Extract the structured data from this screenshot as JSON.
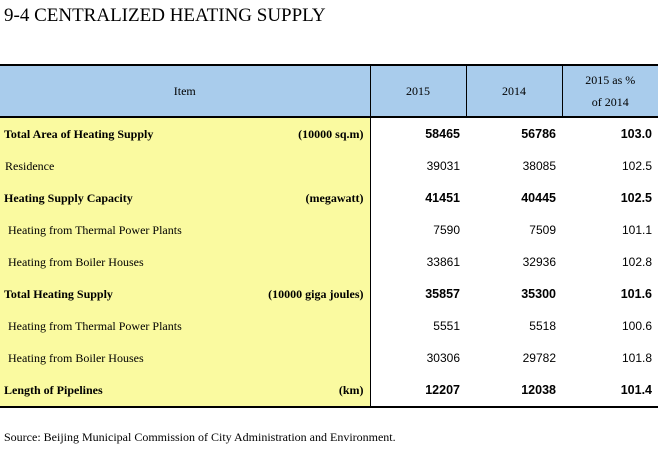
{
  "title": "9-4  CENTRALIZED HEATING SUPPLY",
  "header": {
    "item": "Item",
    "y2015": "2015",
    "y2014": "2014",
    "pct_line1": "2015 as %",
    "pct_line2": "of 2014"
  },
  "rows": [
    {
      "label": "Total Area of Heating Supply",
      "unit": "(10000 sq.m)",
      "v2015": "58465",
      "v2014": "56786",
      "pct": "103.0"
    },
    {
      "label": "Residence",
      "unit": "",
      "v2015": "39031",
      "v2014": "38085",
      "pct": "102.5"
    },
    {
      "label": "Heating Supply Capacity",
      "unit": "(megawatt)",
      "v2015": "41451",
      "v2014": "40445",
      "pct": "102.5"
    },
    {
      "label": "Heating from Thermal Power Plants",
      "unit": "",
      "v2015": "7590",
      "v2014": "7509",
      "pct": "101.1"
    },
    {
      "label": "Heating from Boiler Houses",
      "unit": "",
      "v2015": "33861",
      "v2014": "32936",
      "pct": "102.8"
    },
    {
      "label": "Total Heating Supply",
      "unit": "(10000 giga joules)",
      "v2015": "35857",
      "v2014": "35300",
      "pct": "101.6"
    },
    {
      "label": "Heating from Thermal Power Plants",
      "unit": "",
      "v2015": "5551",
      "v2014": "5518",
      "pct": "100.6"
    },
    {
      "label": "Heating from Boiler Houses",
      "unit": "",
      "v2015": "30306",
      "v2014": "29782",
      "pct": "101.8"
    },
    {
      "label": "Length of Pipelines",
      "unit": "(km)",
      "v2015": "12207",
      "v2014": "12038",
      "pct": "101.4"
    }
  ],
  "source": "Source: Beijing Municipal Commission of City Administration and Environment.",
  "colors": {
    "header_bg": "#a9ccec",
    "item_bg": "#fafaa0"
  }
}
